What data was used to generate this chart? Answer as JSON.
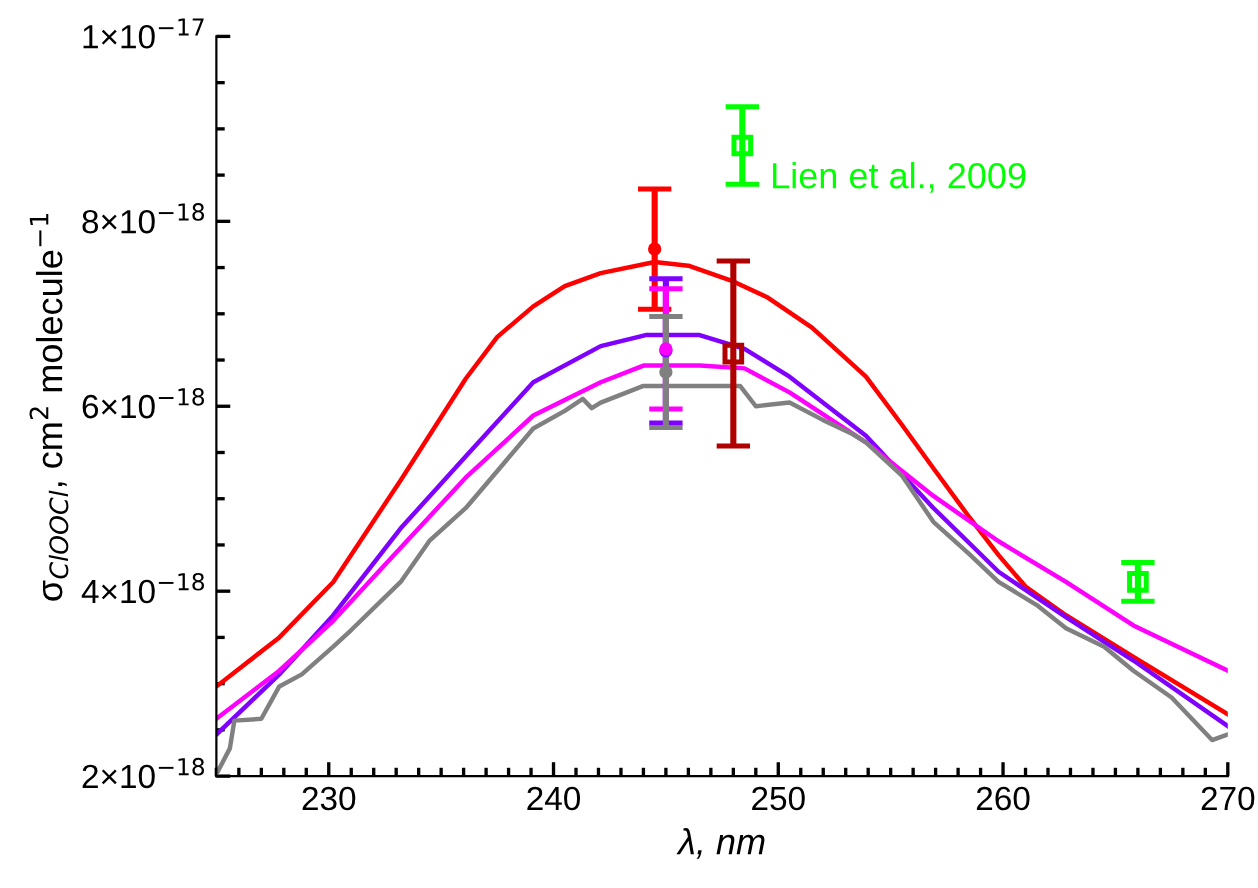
{
  "chart_data": {
    "type": "line",
    "xlabel": "λ, nm",
    "ylabel": "σ$_{ClOOCl}$, cm$^{2}$ molecule$^{−1}$",
    "xlim": [
      225,
      270
    ],
    "ylim": [
      2e-18,
      1e-17
    ],
    "xticks": [
      {
        "value": 225,
        "label": null
      },
      {
        "value": 226,
        "label": null
      },
      {
        "value": 227,
        "label": null
      },
      {
        "value": 228,
        "label": null
      },
      {
        "value": 229,
        "label": null
      },
      230,
      {
        "value": 231,
        "label": null
      },
      {
        "value": 232,
        "label": null
      },
      {
        "value": 233,
        "label": null
      },
      {
        "value": 234,
        "label": null
      },
      {
        "value": 235,
        "label": null
      },
      {
        "value": 236,
        "label": null
      },
      {
        "value": 237,
        "label": null
      },
      {
        "value": 238,
        "label": null
      },
      {
        "value": 239,
        "label": null
      },
      240,
      {
        "value": 241,
        "label": null
      },
      {
        "value": 242,
        "label": null
      },
      {
        "value": 243,
        "label": null
      },
      {
        "value": 244,
        "label": null
      },
      {
        "value": 245,
        "label": null
      },
      {
        "value": 246,
        "label": null
      },
      {
        "value": 247,
        "label": null
      },
      {
        "value": 248,
        "label": null
      },
      {
        "value": 249,
        "label": null
      },
      250,
      {
        "value": 251,
        "label": null
      },
      {
        "value": 252,
        "label": null
      },
      {
        "value": 253,
        "label": null
      },
      {
        "value": 254,
        "label": null
      },
      {
        "value": 255,
        "label": null
      },
      {
        "value": 256,
        "label": null
      },
      {
        "value": 257,
        "label": null
      },
      {
        "value": 258,
        "label": null
      },
      {
        "value": 259,
        "label": null
      },
      260,
      {
        "value": 261,
        "label": null
      },
      {
        "value": 262,
        "label": null
      },
      {
        "value": 263,
        "label": null
      },
      {
        "value": 264,
        "label": null
      },
      {
        "value": 265,
        "label": null
      },
      {
        "value": 266,
        "label": null
      },
      {
        "value": 267,
        "label": null
      },
      {
        "value": 268,
        "label": null
      },
      {
        "value": 269,
        "label": null
      },
      270
    ],
    "yticks": [
      {
        "value": 2e-18,
        "label": "2×10$^{−18}$"
      },
      {
        "value": 2.5e-18,
        "label": null
      },
      {
        "value": 3e-18,
        "label": null
      },
      {
        "value": 3.5e-18,
        "label": null
      },
      {
        "value": 4e-18,
        "label": "4×10$^{−18}$"
      },
      {
        "value": 4.5e-18,
        "label": null
      },
      {
        "value": 5e-18,
        "label": null
      },
      {
        "value": 5.5e-18,
        "label": null
      },
      {
        "value": 6e-18,
        "label": "6×10$^{−18}$"
      },
      {
        "value": 6.5e-18,
        "label": null
      },
      {
        "value": 7e-18,
        "label": null
      },
      {
        "value": 7.5e-18,
        "label": null
      },
      {
        "value": 8e-18,
        "label": "8×10$^{−18}$"
      },
      {
        "value": 8.5e-18,
        "label": null
      },
      {
        "value": 9e-18,
        "label": null
      },
      {
        "value": 9.5e-18,
        "label": null
      },
      {
        "value": 1e-17,
        "label": "1×10$^{−17}$"
      }
    ],
    "grid": false,
    "legend": false,
    "series": [
      {
        "color": "#ff0000",
        "x": [
          225,
          227.8,
          230.2,
          233.2,
          236.1,
          237.5,
          239.1,
          240.5,
          242.1,
          244.5,
          246,
          248,
          249.5,
          251.5,
          253.9,
          255.5,
          256.9,
          258.5,
          259.8,
          261,
          262.8,
          265.8,
          270
        ],
        "values": [
          2.97e-18,
          3.5e-18,
          4.1e-18,
          5.2e-18,
          6.3e-18,
          6.75e-18,
          7.08e-18,
          7.3e-18,
          7.44e-18,
          7.56e-18,
          7.52e-18,
          7.35e-18,
          7.18e-18,
          6.85e-18,
          6.32e-18,
          5.8e-18,
          5.33e-18,
          4.8e-18,
          4.39e-18,
          4.05e-18,
          3.74e-18,
          3.29e-18,
          2.67e-18
        ]
      },
      {
        "color": "#7f00ff",
        "x": [
          225,
          227.8,
          230.2,
          233.2,
          236.1,
          239.1,
          242.1,
          244.1,
          246.5,
          248.5,
          250.5,
          253.9,
          256.9,
          259.8,
          262.8,
          265.8,
          270
        ],
        "values": [
          2.45e-18,
          3.1e-18,
          3.74e-18,
          4.68e-18,
          5.46e-18,
          6.26e-18,
          6.65e-18,
          6.77e-18,
          6.77e-18,
          6.62e-18,
          6.32e-18,
          5.68e-18,
          4.9e-18,
          4.21e-18,
          3.72e-18,
          3.25e-18,
          2.54e-18
        ]
      },
      {
        "color": "#ff00ff",
        "x": [
          225,
          227.8,
          230.2,
          233.2,
          236.1,
          239.1,
          242.1,
          244,
          246.5,
          248.5,
          250.5,
          253.9,
          256.9,
          259.8,
          262.8,
          265.8,
          270
        ],
        "values": [
          2.62e-18,
          3.14e-18,
          3.68e-18,
          4.47e-18,
          5.23e-18,
          5.9e-18,
          6.26e-18,
          6.44e-18,
          6.44e-18,
          6.41e-18,
          6.15e-18,
          5.61e-18,
          5.03e-18,
          4.54e-18,
          4.1e-18,
          3.63e-18,
          3.14e-18
        ]
      },
      {
        "color": "#808080",
        "x": [
          225,
          225.6,
          225.8,
          227,
          227.8,
          228.8,
          230.2,
          231,
          233.2,
          234.5,
          236.1,
          237.5,
          239.1,
          240.5,
          241.3,
          241.7,
          242.1,
          244,
          248.3,
          249,
          250.5,
          252,
          253.3,
          253.9,
          255.5,
          256.9,
          258.5,
          259.8,
          261.5,
          262.8,
          264.5,
          265.8,
          267.5,
          269.3,
          270
        ],
        "values": [
          2.02e-18,
          2.3e-18,
          2.6e-18,
          2.62e-18,
          2.97e-18,
          3.1e-18,
          3.4e-18,
          3.58e-18,
          4.1e-18,
          4.55e-18,
          4.9e-18,
          5.3e-18,
          5.76e-18,
          5.95e-18,
          6.08e-18,
          5.98e-18,
          6.04e-18,
          6.22e-18,
          6.22e-18,
          6e-18,
          6.04e-18,
          5.85e-18,
          5.7e-18,
          5.61e-18,
          5.25e-18,
          4.75e-18,
          4.4e-18,
          4.1e-18,
          3.85e-18,
          3.6e-18,
          3.4e-18,
          3.14e-18,
          2.85e-18,
          2.39e-18,
          2.45e-18
        ]
      },
      {
        "type": "scatter",
        "color": "#ff0000",
        "marker": "circle",
        "x": [
          244.5
        ],
        "values": [
          7.7e-18
        ],
        "errors": [
          6.5e-19
        ]
      },
      {
        "type": "scatter",
        "color": "#7f00ff",
        "marker": "circle",
        "x": [
          245.0
        ],
        "values": [
          6.6e-18
        ],
        "errors": [
          7.8e-19
        ]
      },
      {
        "type": "scatter",
        "color": "#ff00ff",
        "marker": "circle",
        "x": [
          245.0
        ],
        "values": [
          6.62e-18
        ],
        "errors": [
          6.5e-19
        ]
      },
      {
        "type": "scatter",
        "color": "#808080",
        "marker": "circle",
        "x": [
          245.0
        ],
        "values": [
          6.37e-18
        ],
        "errors": [
          6e-19
        ]
      },
      {
        "type": "scatter",
        "color": "#b00000",
        "marker": "square",
        "x": [
          248.0
        ],
        "values": [
          6.57e-18
        ],
        "errors": [
          1e-18
        ]
      },
      {
        "type": "scatter",
        "name": "Lien et al., 2009",
        "color": "#00ff00",
        "marker": "square",
        "x": [
          248.4,
          266.0
        ],
        "values": [
          8.82e-18,
          4.1e-18
        ],
        "errors": [
          4.2e-19,
          2.1e-19
        ]
      }
    ]
  }
}
